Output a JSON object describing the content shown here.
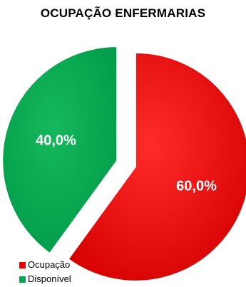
{
  "chart_data": {
    "type": "pie",
    "title": "OCUPAÇÃO ENFERMARIAS",
    "slices": [
      {
        "label": "Ocupação",
        "value": 60.0,
        "display": "60,0%",
        "color": "#ee0000"
      },
      {
        "label": "Disponível",
        "value": 40.0,
        "display": "40,0%",
        "color": "#00a550"
      }
    ],
    "legend_position": "bottom-left",
    "exploded": true
  }
}
